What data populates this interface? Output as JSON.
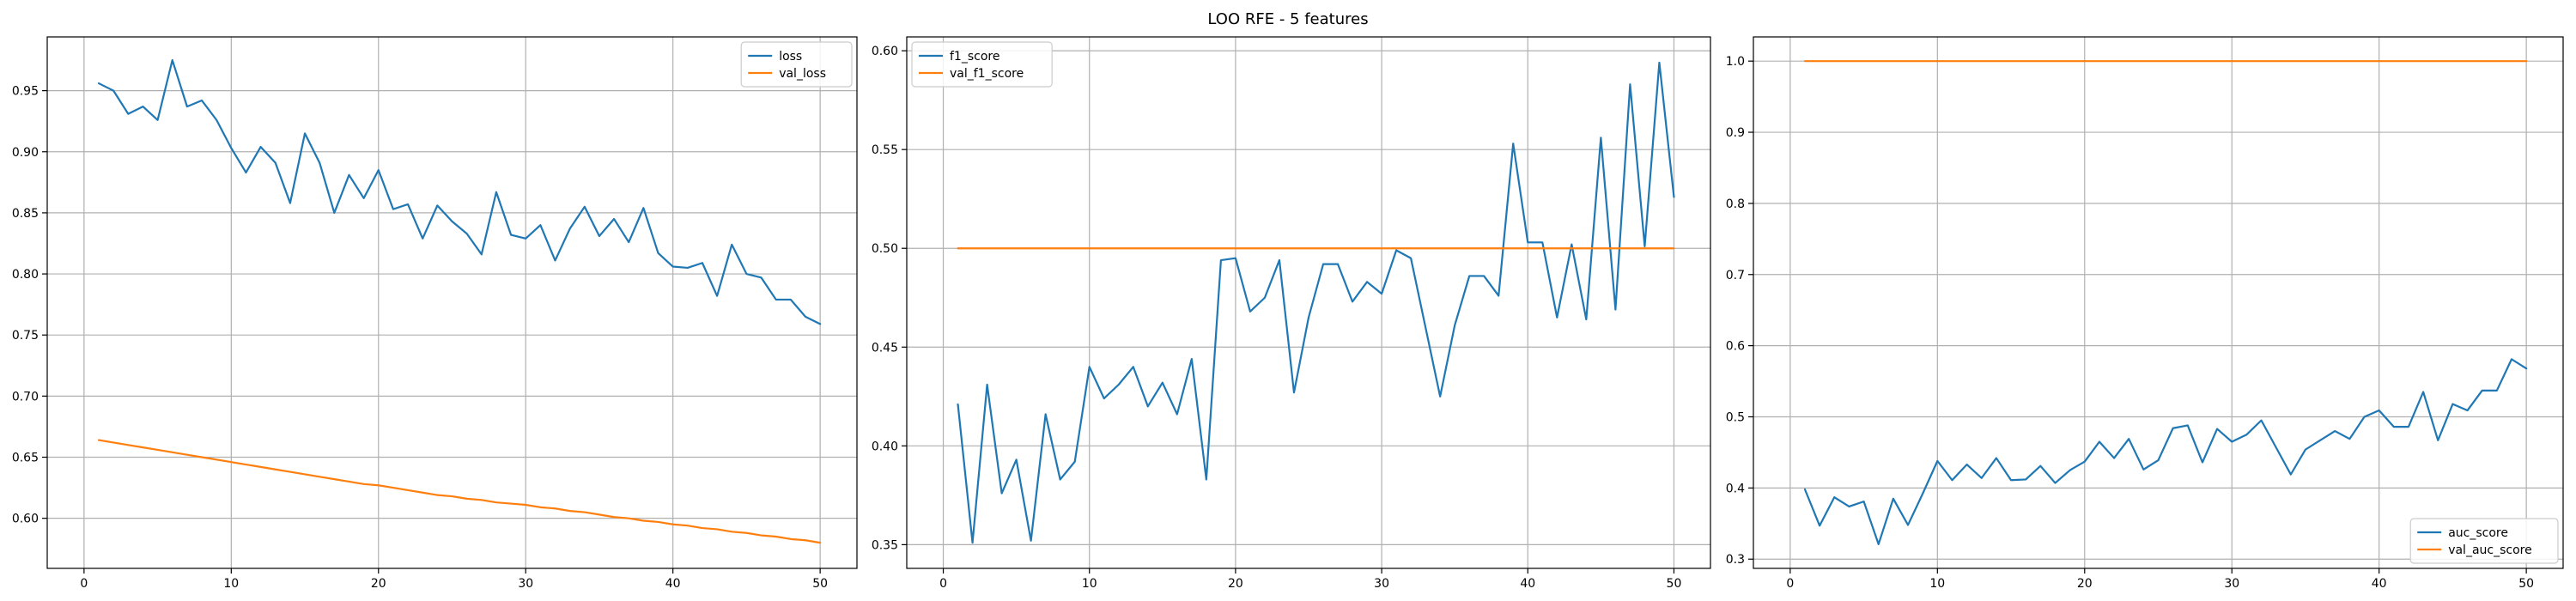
{
  "figure": {
    "title": "LOO RFE - 5 features"
  },
  "chart_data": [
    {
      "type": "line",
      "title": "",
      "xlabel": "",
      "ylabel": "",
      "xlim": [
        -2.5,
        52.5
      ],
      "ylim": [
        0.559,
        0.994
      ],
      "xticks": [
        0,
        10,
        20,
        30,
        40,
        50
      ],
      "yticks": [
        0.6,
        0.65,
        0.7,
        0.75,
        0.8,
        0.85,
        0.9,
        0.95
      ],
      "ytick_decimals": 2,
      "grid": true,
      "legend_position": "top-right",
      "series": [
        {
          "name": "loss",
          "color": "#1f77b4",
          "x": [
            1,
            2,
            3,
            4,
            5,
            6,
            7,
            8,
            9,
            10,
            11,
            12,
            13,
            14,
            15,
            16,
            17,
            18,
            19,
            20,
            21,
            22,
            23,
            24,
            25,
            26,
            27,
            28,
            29,
            30,
            31,
            32,
            33,
            34,
            35,
            36,
            37,
            38,
            39,
            40,
            41,
            42,
            43,
            44,
            45,
            46,
            47,
            48,
            49,
            50
          ],
          "values": [
            0.956,
            0.95,
            0.931,
            0.937,
            0.926,
            0.975,
            0.937,
            0.942,
            0.926,
            0.903,
            0.883,
            0.904,
            0.891,
            0.858,
            0.915,
            0.891,
            0.85,
            0.881,
            0.862,
            0.885,
            0.853,
            0.857,
            0.829,
            0.856,
            0.843,
            0.833,
            0.816,
            0.867,
            0.832,
            0.829,
            0.84,
            0.811,
            0.837,
            0.855,
            0.831,
            0.845,
            0.826,
            0.854,
            0.817,
            0.806,
            0.805,
            0.809,
            0.782,
            0.824,
            0.8,
            0.797,
            0.779,
            0.779,
            0.765,
            0.759
          ]
        },
        {
          "name": "val_loss",
          "color": "#ff7f0e",
          "x": [
            1,
            2,
            3,
            4,
            5,
            6,
            7,
            8,
            9,
            10,
            11,
            12,
            13,
            14,
            15,
            16,
            17,
            18,
            19,
            20,
            21,
            22,
            23,
            24,
            25,
            26,
            27,
            28,
            29,
            30,
            31,
            32,
            33,
            34,
            35,
            36,
            37,
            38,
            39,
            40,
            41,
            42,
            43,
            44,
            45,
            46,
            47,
            48,
            49,
            50
          ],
          "values": [
            0.664,
            0.662,
            0.66,
            0.658,
            0.656,
            0.654,
            0.652,
            0.65,
            0.648,
            0.646,
            0.644,
            0.642,
            0.64,
            0.638,
            0.636,
            0.634,
            0.632,
            0.63,
            0.628,
            0.627,
            0.625,
            0.623,
            0.621,
            0.619,
            0.618,
            0.616,
            0.615,
            0.613,
            0.612,
            0.611,
            0.609,
            0.608,
            0.606,
            0.605,
            0.603,
            0.601,
            0.6,
            0.598,
            0.597,
            0.595,
            0.594,
            0.592,
            0.591,
            0.589,
            0.588,
            0.586,
            0.585,
            0.583,
            0.582,
            0.58
          ]
        }
      ]
    },
    {
      "type": "line",
      "title": "",
      "xlabel": "",
      "ylabel": "",
      "xlim": [
        -2.5,
        52.5
      ],
      "ylim": [
        0.338,
        0.607
      ],
      "xticks": [
        0,
        10,
        20,
        30,
        40,
        50
      ],
      "yticks": [
        0.35,
        0.4,
        0.45,
        0.5,
        0.55,
        0.6
      ],
      "ytick_decimals": 2,
      "grid": true,
      "legend_position": "top-left",
      "series": [
        {
          "name": "f1_score",
          "color": "#1f77b4",
          "x": [
            1,
            2,
            3,
            4,
            5,
            6,
            7,
            8,
            9,
            10,
            11,
            12,
            13,
            14,
            15,
            16,
            17,
            18,
            19,
            20,
            21,
            22,
            23,
            24,
            25,
            26,
            27,
            28,
            29,
            30,
            31,
            32,
            33,
            34,
            35,
            36,
            37,
            38,
            39,
            40,
            41,
            42,
            43,
            44,
            45,
            46,
            47,
            48,
            49,
            50
          ],
          "values": [
            0.421,
            0.351,
            0.431,
            0.376,
            0.393,
            0.352,
            0.416,
            0.383,
            0.392,
            0.44,
            0.424,
            0.431,
            0.44,
            0.42,
            0.432,
            0.416,
            0.444,
            0.383,
            0.494,
            0.495,
            0.468,
            0.475,
            0.494,
            0.427,
            0.465,
            0.492,
            0.492,
            0.473,
            0.483,
            0.477,
            0.499,
            0.495,
            0.46,
            0.425,
            0.461,
            0.486,
            0.486,
            0.476,
            0.553,
            0.503,
            0.503,
            0.465,
            0.502,
            0.464,
            0.556,
            0.469,
            0.583,
            0.501,
            0.594,
            0.526
          ]
        },
        {
          "name": "val_f1_score",
          "color": "#ff7f0e",
          "x": [
            1,
            2,
            3,
            4,
            5,
            6,
            7,
            8,
            9,
            10,
            11,
            12,
            13,
            14,
            15,
            16,
            17,
            18,
            19,
            20,
            21,
            22,
            23,
            24,
            25,
            26,
            27,
            28,
            29,
            30,
            31,
            32,
            33,
            34,
            35,
            36,
            37,
            38,
            39,
            40,
            41,
            42,
            43,
            44,
            45,
            46,
            47,
            48,
            49,
            50
          ],
          "values": [
            0.5,
            0.5,
            0.5,
            0.5,
            0.5,
            0.5,
            0.5,
            0.5,
            0.5,
            0.5,
            0.5,
            0.5,
            0.5,
            0.5,
            0.5,
            0.5,
            0.5,
            0.5,
            0.5,
            0.5,
            0.5,
            0.5,
            0.5,
            0.5,
            0.5,
            0.5,
            0.5,
            0.5,
            0.5,
            0.5,
            0.5,
            0.5,
            0.5,
            0.5,
            0.5,
            0.5,
            0.5,
            0.5,
            0.5,
            0.5,
            0.5,
            0.5,
            0.5,
            0.5,
            0.5,
            0.5,
            0.5,
            0.5,
            0.5,
            0.5
          ]
        }
      ]
    },
    {
      "type": "line",
      "title": "",
      "xlabel": "",
      "ylabel": "",
      "xlim": [
        -2.5,
        52.5
      ],
      "ylim": [
        0.287,
        1.034
      ],
      "xticks": [
        0,
        10,
        20,
        30,
        40,
        50
      ],
      "yticks": [
        0.3,
        0.4,
        0.5,
        0.6,
        0.7,
        0.8,
        0.9,
        1.0
      ],
      "ytick_decimals": 1,
      "grid": true,
      "legend_position": "bottom-right",
      "series": [
        {
          "name": "auc_score",
          "color": "#1f77b4",
          "x": [
            1,
            2,
            3,
            4,
            5,
            6,
            7,
            8,
            9,
            10,
            11,
            12,
            13,
            14,
            15,
            16,
            17,
            18,
            19,
            20,
            21,
            22,
            23,
            24,
            25,
            26,
            27,
            28,
            29,
            30,
            31,
            32,
            33,
            34,
            35,
            36,
            37,
            38,
            39,
            40,
            41,
            42,
            43,
            44,
            45,
            46,
            47,
            48,
            49,
            50
          ],
          "values": [
            0.398,
            0.347,
            0.387,
            0.374,
            0.381,
            0.321,
            0.385,
            0.348,
            0.392,
            0.438,
            0.411,
            0.433,
            0.414,
            0.442,
            0.411,
            0.412,
            0.431,
            0.407,
            0.425,
            0.437,
            0.465,
            0.442,
            0.469,
            0.426,
            0.439,
            0.484,
            0.488,
            0.436,
            0.483,
            0.465,
            0.475,
            0.495,
            0.457,
            0.419,
            0.454,
            0.467,
            0.48,
            0.469,
            0.5,
            0.509,
            0.486,
            0.486,
            0.535,
            0.467,
            0.518,
            0.509,
            0.537,
            0.537,
            0.581,
            0.568
          ]
        },
        {
          "name": "val_auc_score",
          "color": "#ff7f0e",
          "x": [
            1,
            2,
            3,
            4,
            5,
            6,
            7,
            8,
            9,
            10,
            11,
            12,
            13,
            14,
            15,
            16,
            17,
            18,
            19,
            20,
            21,
            22,
            23,
            24,
            25,
            26,
            27,
            28,
            29,
            30,
            31,
            32,
            33,
            34,
            35,
            36,
            37,
            38,
            39,
            40,
            41,
            42,
            43,
            44,
            45,
            46,
            47,
            48,
            49,
            50
          ],
          "values": [
            1.0,
            1.0,
            1.0,
            1.0,
            1.0,
            1.0,
            1.0,
            1.0,
            1.0,
            1.0,
            1.0,
            1.0,
            1.0,
            1.0,
            1.0,
            1.0,
            1.0,
            1.0,
            1.0,
            1.0,
            1.0,
            1.0,
            1.0,
            1.0,
            1.0,
            1.0,
            1.0,
            1.0,
            1.0,
            1.0,
            1.0,
            1.0,
            1.0,
            1.0,
            1.0,
            1.0,
            1.0,
            1.0,
            1.0,
            1.0,
            1.0,
            1.0,
            1.0,
            1.0,
            1.0,
            1.0,
            1.0,
            1.0,
            1.0,
            1.0
          ]
        }
      ]
    }
  ]
}
